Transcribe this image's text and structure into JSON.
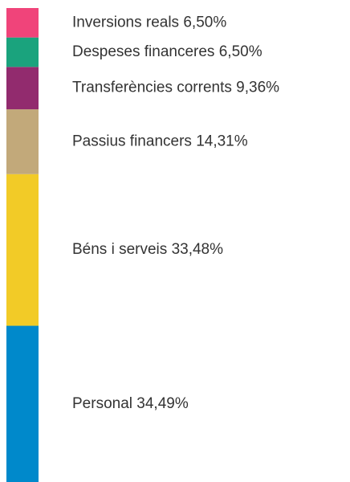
{
  "chart_data": {
    "type": "stacked-bar",
    "categories": [
      "Inversions reals",
      "Despeses financeres",
      "Transferències corrents",
      "Passius financers",
      "Béns i serveis",
      "Personal"
    ],
    "values": [
      6.5,
      6.5,
      9.36,
      14.31,
      33.48,
      34.49
    ],
    "value_labels": [
      "6,50%",
      "6,50%",
      "9,36%",
      "14,31%",
      "33,48%",
      "34,49%"
    ],
    "colors": [
      "#f0447a",
      "#1aa37d",
      "#922b6e",
      "#c2a97a",
      "#f2cb27",
      "#0089cb"
    ]
  }
}
